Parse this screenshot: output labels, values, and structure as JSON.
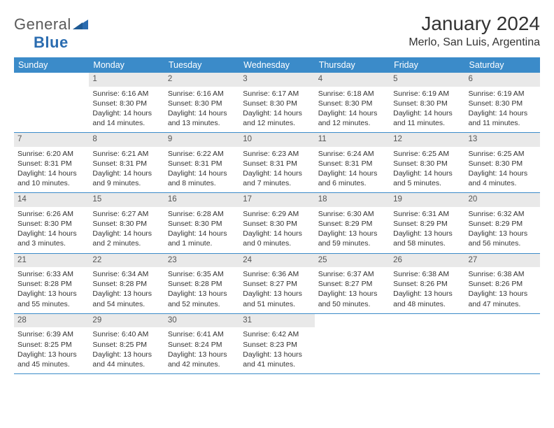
{
  "logo": {
    "word1": "General",
    "word2": "Blue"
  },
  "title": "January 2024",
  "location": "Merlo, San Luis, Argentina",
  "colors": {
    "header_bg": "#3b8bc9",
    "header_text": "#ffffff",
    "daynum_bg": "#e9e9e9",
    "rule": "#3b8bc9",
    "body_text": "#333333",
    "logo_gray": "#5a5a5a",
    "logo_blue": "#2a6cb0"
  },
  "typography": {
    "title_fontsize": 28,
    "location_fontsize": 16,
    "dayheader_fontsize": 12.5,
    "cell_fontsize": 10.5
  },
  "day_names": [
    "Sunday",
    "Monday",
    "Tuesday",
    "Wednesday",
    "Thursday",
    "Friday",
    "Saturday"
  ],
  "weeks": [
    [
      {
        "n": "",
        "sunrise": "",
        "sunset": "",
        "daylight": ""
      },
      {
        "n": "1",
        "sunrise": "Sunrise: 6:16 AM",
        "sunset": "Sunset: 8:30 PM",
        "daylight": "Daylight: 14 hours and 14 minutes."
      },
      {
        "n": "2",
        "sunrise": "Sunrise: 6:16 AM",
        "sunset": "Sunset: 8:30 PM",
        "daylight": "Daylight: 14 hours and 13 minutes."
      },
      {
        "n": "3",
        "sunrise": "Sunrise: 6:17 AM",
        "sunset": "Sunset: 8:30 PM",
        "daylight": "Daylight: 14 hours and 12 minutes."
      },
      {
        "n": "4",
        "sunrise": "Sunrise: 6:18 AM",
        "sunset": "Sunset: 8:30 PM",
        "daylight": "Daylight: 14 hours and 12 minutes."
      },
      {
        "n": "5",
        "sunrise": "Sunrise: 6:19 AM",
        "sunset": "Sunset: 8:30 PM",
        "daylight": "Daylight: 14 hours and 11 minutes."
      },
      {
        "n": "6",
        "sunrise": "Sunrise: 6:19 AM",
        "sunset": "Sunset: 8:30 PM",
        "daylight": "Daylight: 14 hours and 11 minutes."
      }
    ],
    [
      {
        "n": "7",
        "sunrise": "Sunrise: 6:20 AM",
        "sunset": "Sunset: 8:31 PM",
        "daylight": "Daylight: 14 hours and 10 minutes."
      },
      {
        "n": "8",
        "sunrise": "Sunrise: 6:21 AM",
        "sunset": "Sunset: 8:31 PM",
        "daylight": "Daylight: 14 hours and 9 minutes."
      },
      {
        "n": "9",
        "sunrise": "Sunrise: 6:22 AM",
        "sunset": "Sunset: 8:31 PM",
        "daylight": "Daylight: 14 hours and 8 minutes."
      },
      {
        "n": "10",
        "sunrise": "Sunrise: 6:23 AM",
        "sunset": "Sunset: 8:31 PM",
        "daylight": "Daylight: 14 hours and 7 minutes."
      },
      {
        "n": "11",
        "sunrise": "Sunrise: 6:24 AM",
        "sunset": "Sunset: 8:31 PM",
        "daylight": "Daylight: 14 hours and 6 minutes."
      },
      {
        "n": "12",
        "sunrise": "Sunrise: 6:25 AM",
        "sunset": "Sunset: 8:30 PM",
        "daylight": "Daylight: 14 hours and 5 minutes."
      },
      {
        "n": "13",
        "sunrise": "Sunrise: 6:25 AM",
        "sunset": "Sunset: 8:30 PM",
        "daylight": "Daylight: 14 hours and 4 minutes."
      }
    ],
    [
      {
        "n": "14",
        "sunrise": "Sunrise: 6:26 AM",
        "sunset": "Sunset: 8:30 PM",
        "daylight": "Daylight: 14 hours and 3 minutes."
      },
      {
        "n": "15",
        "sunrise": "Sunrise: 6:27 AM",
        "sunset": "Sunset: 8:30 PM",
        "daylight": "Daylight: 14 hours and 2 minutes."
      },
      {
        "n": "16",
        "sunrise": "Sunrise: 6:28 AM",
        "sunset": "Sunset: 8:30 PM",
        "daylight": "Daylight: 14 hours and 1 minute."
      },
      {
        "n": "17",
        "sunrise": "Sunrise: 6:29 AM",
        "sunset": "Sunset: 8:30 PM",
        "daylight": "Daylight: 14 hours and 0 minutes."
      },
      {
        "n": "18",
        "sunrise": "Sunrise: 6:30 AM",
        "sunset": "Sunset: 8:29 PM",
        "daylight": "Daylight: 13 hours and 59 minutes."
      },
      {
        "n": "19",
        "sunrise": "Sunrise: 6:31 AM",
        "sunset": "Sunset: 8:29 PM",
        "daylight": "Daylight: 13 hours and 58 minutes."
      },
      {
        "n": "20",
        "sunrise": "Sunrise: 6:32 AM",
        "sunset": "Sunset: 8:29 PM",
        "daylight": "Daylight: 13 hours and 56 minutes."
      }
    ],
    [
      {
        "n": "21",
        "sunrise": "Sunrise: 6:33 AM",
        "sunset": "Sunset: 8:28 PM",
        "daylight": "Daylight: 13 hours and 55 minutes."
      },
      {
        "n": "22",
        "sunrise": "Sunrise: 6:34 AM",
        "sunset": "Sunset: 8:28 PM",
        "daylight": "Daylight: 13 hours and 54 minutes."
      },
      {
        "n": "23",
        "sunrise": "Sunrise: 6:35 AM",
        "sunset": "Sunset: 8:28 PM",
        "daylight": "Daylight: 13 hours and 52 minutes."
      },
      {
        "n": "24",
        "sunrise": "Sunrise: 6:36 AM",
        "sunset": "Sunset: 8:27 PM",
        "daylight": "Daylight: 13 hours and 51 minutes."
      },
      {
        "n": "25",
        "sunrise": "Sunrise: 6:37 AM",
        "sunset": "Sunset: 8:27 PM",
        "daylight": "Daylight: 13 hours and 50 minutes."
      },
      {
        "n": "26",
        "sunrise": "Sunrise: 6:38 AM",
        "sunset": "Sunset: 8:26 PM",
        "daylight": "Daylight: 13 hours and 48 minutes."
      },
      {
        "n": "27",
        "sunrise": "Sunrise: 6:38 AM",
        "sunset": "Sunset: 8:26 PM",
        "daylight": "Daylight: 13 hours and 47 minutes."
      }
    ],
    [
      {
        "n": "28",
        "sunrise": "Sunrise: 6:39 AM",
        "sunset": "Sunset: 8:25 PM",
        "daylight": "Daylight: 13 hours and 45 minutes."
      },
      {
        "n": "29",
        "sunrise": "Sunrise: 6:40 AM",
        "sunset": "Sunset: 8:25 PM",
        "daylight": "Daylight: 13 hours and 44 minutes."
      },
      {
        "n": "30",
        "sunrise": "Sunrise: 6:41 AM",
        "sunset": "Sunset: 8:24 PM",
        "daylight": "Daylight: 13 hours and 42 minutes."
      },
      {
        "n": "31",
        "sunrise": "Sunrise: 6:42 AM",
        "sunset": "Sunset: 8:23 PM",
        "daylight": "Daylight: 13 hours and 41 minutes."
      },
      {
        "n": "",
        "sunrise": "",
        "sunset": "",
        "daylight": ""
      },
      {
        "n": "",
        "sunrise": "",
        "sunset": "",
        "daylight": ""
      },
      {
        "n": "",
        "sunrise": "",
        "sunset": "",
        "daylight": ""
      }
    ]
  ]
}
